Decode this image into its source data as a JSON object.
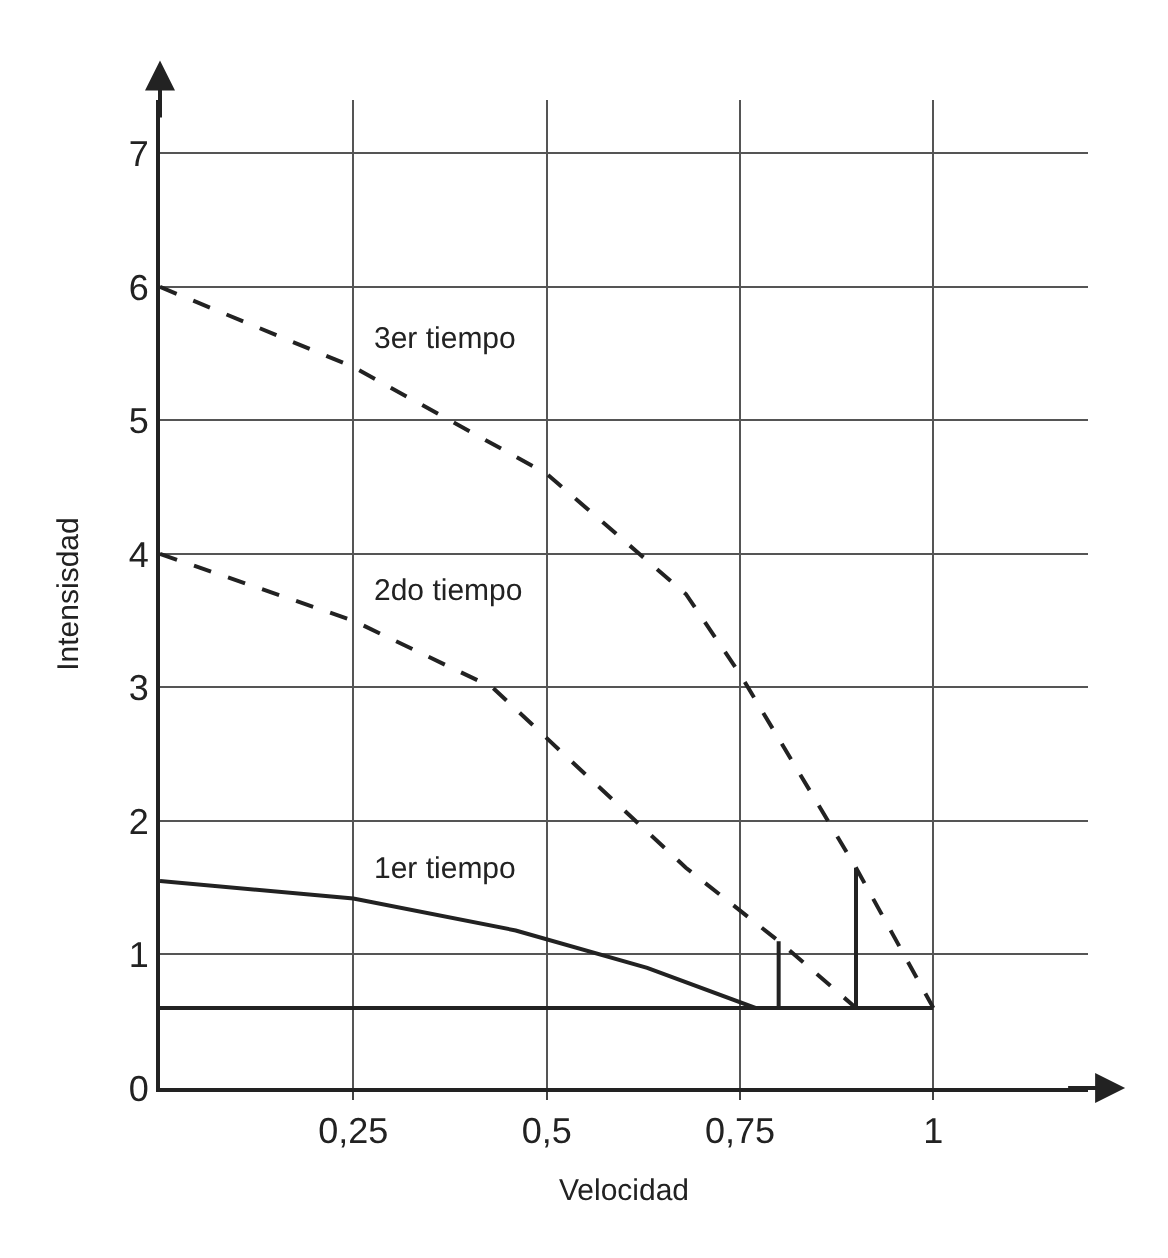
{
  "chart_data": {
    "type": "line",
    "xlabel": "Velocidad",
    "ylabel": "Intensisdad",
    "xlim": [
      0,
      1.2
    ],
    "ylim": [
      0,
      7.4
    ],
    "xticks": [
      {
        "value": 0.25,
        "label": "0,25"
      },
      {
        "value": 0.5,
        "label": "0,5"
      },
      {
        "value": 0.75,
        "label": "0,75"
      },
      1
    ],
    "yticks": [
      0,
      1,
      2,
      3,
      4,
      5,
      6,
      7
    ],
    "grid": true,
    "legend": false,
    "marker": "none",
    "series": [
      {
        "name": "3er tiempo",
        "color": "#222222",
        "line_style": "dashed",
        "x": [
          0,
          0.25,
          0.5,
          0.62,
          0.68,
          0.75,
          0.9,
          1
        ],
        "values": [
          6,
          5.4,
          4.6,
          4.0,
          3.7,
          3.1,
          1.65,
          0.6
        ]
      },
      {
        "name": "2do tiempo",
        "color": "#222222",
        "line_style": "dashed",
        "x": [
          0,
          0.25,
          0.43,
          0.55,
          0.68,
          0.8,
          0.9
        ],
        "values": [
          4,
          3.5,
          3.0,
          2.35,
          1.65,
          1.1,
          0.6
        ]
      },
      {
        "name": "1er tiempo",
        "color": "#222222",
        "line_style": "solid",
        "x": [
          0,
          0.25,
          0.46,
          0.63,
          0.77,
          0.8,
          0.8
        ],
        "values": [
          1.55,
          1.42,
          1.18,
          0.9,
          0.6,
          0.6,
          1.1
        ]
      },
      {
        "color": "#222222",
        "line_style": "solid",
        "x": [
          0.9,
          0.9
        ],
        "values": [
          0.6,
          1.65
        ]
      },
      {
        "color": "#222222",
        "line_style": "solid",
        "x": [
          0,
          1
        ],
        "values": [
          0.6,
          0.6
        ]
      }
    ]
  }
}
